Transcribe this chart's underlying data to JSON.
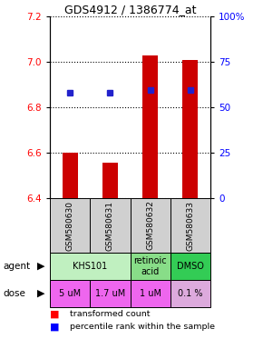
{
  "title": "GDS4912 / 1386774_at",
  "samples": [
    "GSM580630",
    "GSM580631",
    "GSM580632",
    "GSM580633"
  ],
  "bar_bottoms": [
    6.4,
    6.4,
    6.4,
    6.4
  ],
  "bar_tops": [
    6.6,
    6.555,
    7.03,
    7.01
  ],
  "blue_y": [
    6.865,
    6.865,
    6.875,
    6.875
  ],
  "ylim": [
    6.4,
    7.2
  ],
  "yticks": [
    6.4,
    6.6,
    6.8,
    7.0,
    7.2
  ],
  "right_yticks": [
    0,
    25,
    50,
    75,
    100
  ],
  "bar_color": "#cc0000",
  "blue_color": "#2222cc",
  "sample_bg": "#d0d0d0",
  "agent_spans": [
    {
      "label": "KHS101",
      "start": 0,
      "end": 2,
      "color": "#c0f0c0"
    },
    {
      "label": "retinoic\nacid",
      "start": 2,
      "end": 3,
      "color": "#88dd88"
    },
    {
      "label": "DMSO",
      "start": 3,
      "end": 4,
      "color": "#33cc55"
    }
  ],
  "dose_entries": [
    {
      "label": "5 uM",
      "start": 0,
      "end": 1,
      "color": "#ee66ee"
    },
    {
      "label": "1.7 uM",
      "start": 1,
      "end": 2,
      "color": "#ee66ee"
    },
    {
      "label": "1 uM",
      "start": 2,
      "end": 3,
      "color": "#ee66ee"
    },
    {
      "label": "0.1 %",
      "start": 3,
      "end": 4,
      "color": "#ddaadd"
    }
  ],
  "legend_red": "transformed count",
  "legend_blue": "percentile rank within the sample"
}
